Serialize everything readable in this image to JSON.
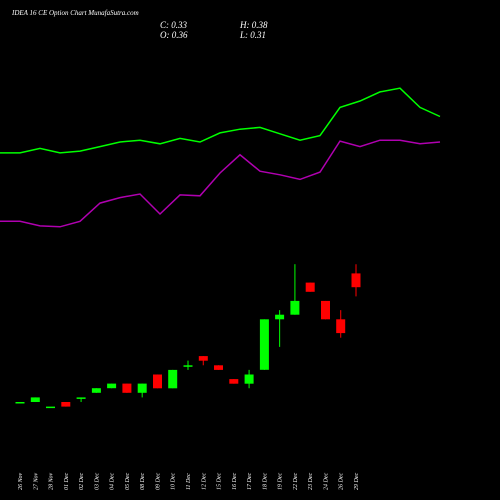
{
  "header": {
    "title": "IDEA 16  CE Option  Chart MunafaSutra.com",
    "open": "O: 0.36",
    "high": "H: 0.38",
    "low": "L: 0.31",
    "close": "C: 0.33"
  },
  "colors": {
    "background": "#000000",
    "up": "#00ff00",
    "down": "#ff0000",
    "ema_fast": "#00ff00",
    "ema_slow": "#b000b0",
    "text": "#ffffff"
  },
  "chart_data": [
    {
      "type": "candlestick",
      "title": "IDEA 16  CE Option  Chart MunafaSutra.com",
      "categories": [
        "26 Nov",
        "27 Nov",
        "28 Nov",
        "01 Dec",
        "02 Dec",
        "03 Dec",
        "04 Dec",
        "05 Dec",
        "08 Dec",
        "09 Dec",
        "10 Dec",
        "11 Dec",
        "12 Dec",
        "15 Dec",
        "16 Dec",
        "17 Dec",
        "18 Dec",
        "19 Dec",
        "22 Dec",
        "23 Dec",
        "24 Dec",
        "26 Dec",
        "29 Dec"
      ],
      "ylim": [
        0.0,
        0.46
      ],
      "candles": [
        {
          "date": "26 Nov",
          "open": 0.08,
          "high": 0.08,
          "low": 0.08,
          "close": 0.08
        },
        {
          "date": "27 Nov",
          "open": 0.08,
          "high": 0.09,
          "low": 0.08,
          "close": 0.09
        },
        {
          "date": "28 Nov",
          "open": 0.07,
          "high": 0.07,
          "low": 0.07,
          "close": 0.07
        },
        {
          "date": "01 Dec",
          "open": 0.08,
          "high": 0.08,
          "low": 0.07,
          "close": 0.07
        },
        {
          "date": "02 Dec",
          "open": 0.09,
          "high": 0.09,
          "low": 0.08,
          "close": 0.09
        },
        {
          "date": "03 Dec",
          "open": 0.1,
          "high": 0.11,
          "low": 0.1,
          "close": 0.11
        },
        {
          "date": "04 Dec",
          "open": 0.11,
          "high": 0.12,
          "low": 0.11,
          "close": 0.12
        },
        {
          "date": "05 Dec",
          "open": 0.12,
          "high": 0.12,
          "low": 0.1,
          "close": 0.1
        },
        {
          "date": "08 Dec",
          "open": 0.1,
          "high": 0.12,
          "low": 0.09,
          "close": 0.12
        },
        {
          "date": "09 Dec",
          "open": 0.14,
          "high": 0.14,
          "low": 0.11,
          "close": 0.11
        },
        {
          "date": "10 Dec",
          "open": 0.11,
          "high": 0.15,
          "low": 0.11,
          "close": 0.15
        },
        {
          "date": "11 Dec",
          "open": 0.16,
          "high": 0.17,
          "low": 0.15,
          "close": 0.16
        },
        {
          "date": "12 Dec",
          "open": 0.18,
          "high": 0.18,
          "low": 0.16,
          "close": 0.17
        },
        {
          "date": "15 Dec",
          "open": 0.16,
          "high": 0.16,
          "low": 0.15,
          "close": 0.15
        },
        {
          "date": "16 Dec",
          "open": 0.13,
          "high": 0.13,
          "low": 0.12,
          "close": 0.12
        },
        {
          "date": "17 Dec",
          "open": 0.12,
          "high": 0.15,
          "low": 0.11,
          "close": 0.14
        },
        {
          "date": "18 Dec",
          "open": 0.15,
          "high": 0.26,
          "low": 0.15,
          "close": 0.26
        },
        {
          "date": "19 Dec",
          "open": 0.26,
          "high": 0.28,
          "low": 0.2,
          "close": 0.27
        },
        {
          "date": "22 Dec",
          "open": 0.27,
          "high": 0.38,
          "low": 0.27,
          "close": 0.3
        },
        {
          "date": "23 Dec",
          "open": 0.34,
          "high": 0.34,
          "low": 0.32,
          "close": 0.32
        },
        {
          "date": "24 Dec",
          "open": 0.3,
          "high": 0.3,
          "low": 0.26,
          "close": 0.26
        },
        {
          "date": "26 Dec",
          "open": 0.26,
          "high": 0.28,
          "low": 0.22,
          "close": 0.23
        },
        {
          "date": "29 Dec",
          "open": 0.36,
          "high": 0.38,
          "low": 0.31,
          "close": 0.33
        }
      ],
      "ema_fast": [
        0.43,
        0.43,
        0.435,
        0.43,
        0.432,
        0.437,
        0.442,
        0.444,
        0.44,
        0.446,
        0.442,
        0.452,
        0.456,
        0.458,
        0.451,
        0.444,
        0.449,
        0.48,
        0.487,
        0.497,
        0.501,
        0.48,
        0.47
      ],
      "ema_slow": [
        0.355,
        0.355,
        0.35,
        0.349,
        0.355,
        0.375,
        0.381,
        0.385,
        0.363,
        0.384,
        0.383,
        0.408,
        0.428,
        0.41,
        0.406,
        0.401,
        0.409,
        0.443,
        0.437,
        0.444,
        0.444,
        0.44,
        0.442
      ]
    }
  ]
}
